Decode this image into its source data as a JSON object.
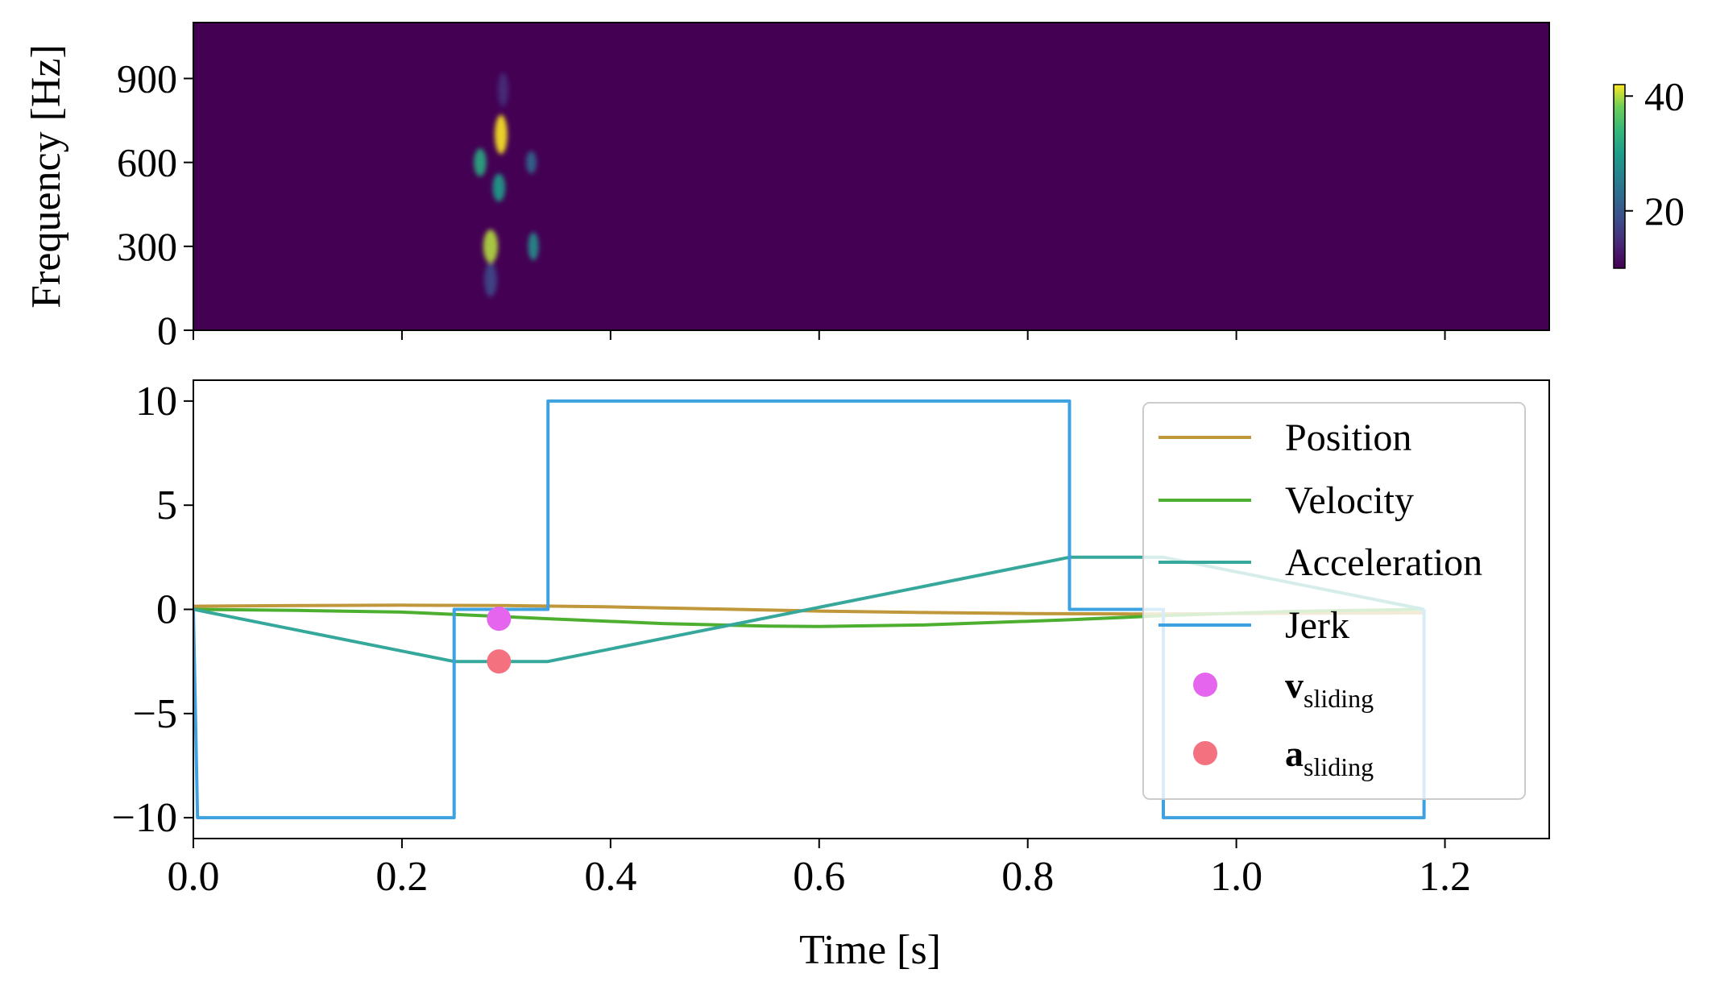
{
  "chart_data": [
    {
      "type": "heatmap",
      "title": "",
      "xlabel": "",
      "ylabel": "Frequency [Hz]",
      "xlim": [
        0.0,
        1.3
      ],
      "ylim": [
        0,
        1100
      ],
      "yticks": [
        0,
        300,
        600,
        900
      ],
      "ytick_labels": [
        "0",
        "300",
        "600",
        "900"
      ],
      "xticks": [
        0.0,
        0.2,
        0.4,
        0.6,
        0.8,
        1.0,
        1.2
      ],
      "colormap": "viridis",
      "colorbar": {
        "ticks": [
          20,
          40
        ],
        "tick_labels": [
          "20",
          "40"
        ],
        "range": [
          10,
          42
        ]
      },
      "background_value": 10,
      "blobs": [
        {
          "t": 0.295,
          "f": 700,
          "dt": 0.006,
          "df": 70,
          "value": 42
        },
        {
          "t": 0.285,
          "f": 300,
          "dt": 0.007,
          "df": 60,
          "value": 40
        },
        {
          "t": 0.275,
          "f": 600,
          "dt": 0.006,
          "df": 50,
          "value": 32
        },
        {
          "t": 0.293,
          "f": 510,
          "dt": 0.006,
          "df": 50,
          "value": 30
        },
        {
          "t": 0.326,
          "f": 300,
          "dt": 0.005,
          "df": 50,
          "value": 28
        },
        {
          "t": 0.324,
          "f": 600,
          "dt": 0.005,
          "df": 40,
          "value": 22
        },
        {
          "t": 0.285,
          "f": 180,
          "dt": 0.006,
          "df": 60,
          "value": 18
        },
        {
          "t": 0.297,
          "f": 860,
          "dt": 0.005,
          "df": 60,
          "value": 15
        }
      ]
    },
    {
      "type": "line",
      "title": "",
      "xlabel": "Time [s]",
      "ylabel": "",
      "xlim": [
        0.0,
        1.3
      ],
      "ylim": [
        -11,
        11
      ],
      "xticks": [
        0.0,
        0.2,
        0.4,
        0.6,
        0.8,
        1.0,
        1.2
      ],
      "xtick_labels": [
        "0.0",
        "0.2",
        "0.4",
        "0.6",
        "0.8",
        "1.0",
        "1.2"
      ],
      "yticks": [
        -10,
        -5,
        0,
        5,
        10
      ],
      "ytick_labels": [
        "−10",
        "−5",
        "0",
        "5",
        "10"
      ],
      "legend_position": "upper-right",
      "series": [
        {
          "name": "Position",
          "color": "#c0973a",
          "x": [
            0,
            0.1,
            0.2,
            0.3,
            0.4,
            0.5,
            0.6,
            0.7,
            0.8,
            0.9,
            1.0,
            1.1,
            1.18
          ],
          "y": [
            0.15,
            0.18,
            0.2,
            0.18,
            0.12,
            0.02,
            -0.08,
            -0.15,
            -0.2,
            -0.22,
            -0.2,
            -0.18,
            -0.17
          ]
        },
        {
          "name": "Velocity",
          "color": "#4caf2f",
          "x": [
            0,
            0.1,
            0.2,
            0.25,
            0.34,
            0.45,
            0.55,
            0.6,
            0.7,
            0.84,
            0.93,
            1.05,
            1.18
          ],
          "y": [
            0,
            -0.05,
            -0.13,
            -0.24,
            -0.45,
            -0.68,
            -0.8,
            -0.82,
            -0.75,
            -0.5,
            -0.3,
            -0.1,
            0
          ]
        },
        {
          "name": "Acceleration",
          "color": "#36a89b",
          "x": [
            0,
            0.25,
            0.34,
            0.84,
            0.93,
            1.18
          ],
          "y": [
            0,
            -2.5,
            -2.5,
            2.5,
            2.5,
            0
          ]
        },
        {
          "name": "Jerk",
          "color": "#3ea1e0",
          "x": [
            0,
            0.004,
            0.25,
            0.25,
            0.34,
            0.34,
            0.84,
            0.84,
            0.93,
            0.93,
            1.18,
            1.18
          ],
          "y": [
            0,
            -10,
            -10,
            0,
            0,
            10,
            10,
            0,
            0,
            -10,
            -10,
            0
          ]
        }
      ],
      "points": [
        {
          "name": "v_sliding",
          "label_main": "v",
          "label_sub": "sliding",
          "color": "#e565ee",
          "x": 0.293,
          "y": -0.45
        },
        {
          "name": "a_sliding",
          "label_main": "a",
          "label_sub": "sliding",
          "color": "#f4727f",
          "x": 0.293,
          "y": -2.5
        }
      ]
    }
  ]
}
